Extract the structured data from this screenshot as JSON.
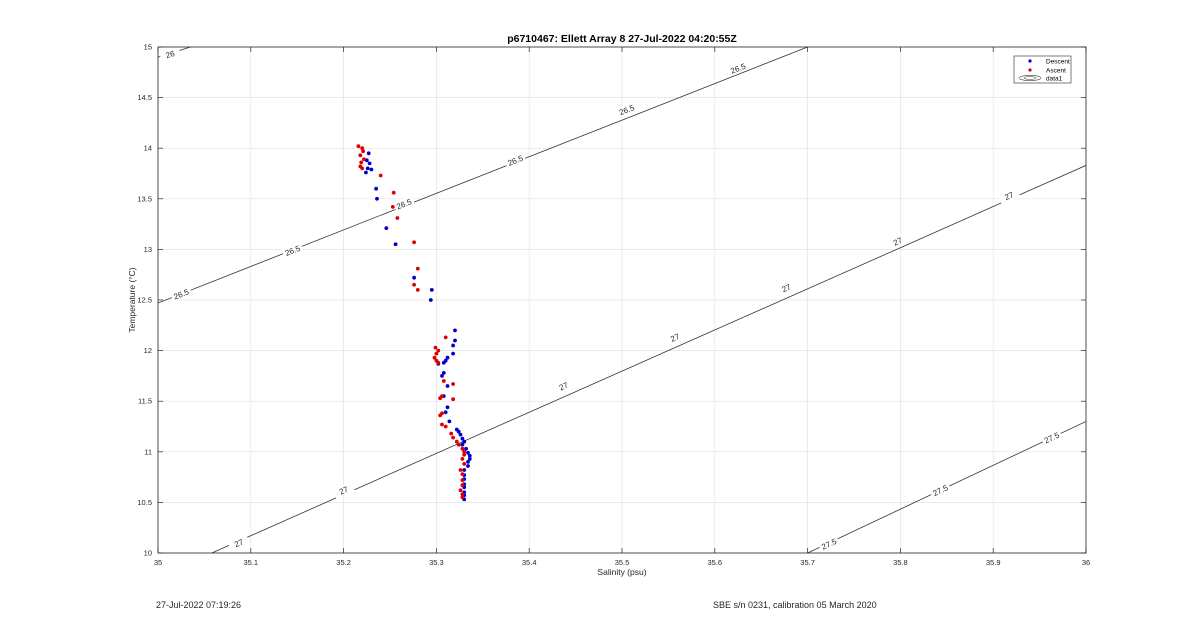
{
  "chart_data": {
    "type": "scatter",
    "title": "p6710467: Ellett Array 8 27-Jul-2022 04:20:55Z",
    "xlabel": "Salinity (psu)",
    "ylabel": "Temperature (°C)",
    "xlim": [
      35,
      36
    ],
    "ylim": [
      10,
      15
    ],
    "x_ticks": [
      "35",
      "35.1",
      "35.2",
      "35.3",
      "35.4",
      "35.5",
      "35.6",
      "35.7",
      "35.8",
      "35.9",
      "36"
    ],
    "y_ticks": [
      "10",
      "10.5",
      "11",
      "11.5",
      "12",
      "12.5",
      "13",
      "13.5",
      "14",
      "14.5",
      "15"
    ],
    "grid": true,
    "legend_position": "top-right",
    "legend": [
      {
        "label": "Descent",
        "color": "#0000cc"
      },
      {
        "label": "Ascent",
        "color": "#dd0000"
      },
      {
        "label": "data1",
        "color": "#000000"
      }
    ],
    "contours": [
      {
        "label": "26",
        "points": [
          [
            35.0,
            14.9
          ],
          [
            35.035,
            15.0
          ]
        ],
        "label_positions": [
          [
            35.013,
            14.93
          ]
        ]
      },
      {
        "label": "26.5",
        "points": [
          [
            35.0,
            12.47
          ],
          [
            35.7,
            15.0
          ]
        ],
        "label_positions": [
          [
            35.025,
            12.56
          ],
          [
            35.145,
            12.99
          ],
          [
            35.265,
            13.45
          ],
          [
            35.385,
            13.88
          ],
          [
            35.505,
            14.38
          ],
          [
            35.625,
            14.79
          ]
        ]
      },
      {
        "label": "27",
        "points": [
          [
            35.058,
            10.0
          ],
          [
            36.0,
            13.83
          ]
        ],
        "label_positions": [
          [
            35.087,
            10.1
          ],
          [
            35.2,
            10.62
          ],
          [
            35.437,
            11.65
          ],
          [
            35.557,
            12.13
          ],
          [
            35.677,
            12.62
          ],
          [
            35.797,
            13.08
          ],
          [
            35.917,
            13.53
          ]
        ]
      },
      {
        "label": "27.5",
        "points": [
          [
            35.7,
            10.0
          ],
          [
            36.0,
            11.3
          ]
        ],
        "label_positions": [
          [
            35.723,
            10.09
          ],
          [
            35.843,
            10.62
          ],
          [
            35.963,
            11.14
          ]
        ]
      }
    ],
    "series": [
      {
        "name": "Descent",
        "color": "#0000cc",
        "points": [
          [
            35.227,
            13.95
          ],
          [
            35.225,
            13.88
          ],
          [
            35.228,
            13.85
          ],
          [
            35.226,
            13.8
          ],
          [
            35.23,
            13.79
          ],
          [
            35.224,
            13.76
          ],
          [
            35.235,
            13.6
          ],
          [
            35.236,
            13.5
          ],
          [
            35.246,
            13.21
          ],
          [
            35.256,
            13.05
          ],
          [
            35.276,
            12.72
          ],
          [
            35.295,
            12.6
          ],
          [
            35.294,
            12.5
          ],
          [
            35.32,
            12.2
          ],
          [
            35.32,
            12.1
          ],
          [
            35.318,
            12.05
          ],
          [
            35.318,
            11.97
          ],
          [
            35.312,
            11.93
          ],
          [
            35.31,
            11.9
          ],
          [
            35.308,
            11.88
          ],
          [
            35.302,
            11.87
          ],
          [
            35.308,
            11.78
          ],
          [
            35.306,
            11.75
          ],
          [
            35.312,
            11.65
          ],
          [
            35.308,
            11.55
          ],
          [
            35.312,
            11.44
          ],
          [
            35.31,
            11.39
          ],
          [
            35.314,
            11.3
          ],
          [
            35.322,
            11.22
          ],
          [
            35.324,
            11.2
          ],
          [
            35.326,
            11.17
          ],
          [
            35.328,
            11.13
          ],
          [
            35.33,
            11.1
          ],
          [
            35.328,
            11.07
          ],
          [
            35.332,
            11.03
          ],
          [
            35.334,
            10.99
          ],
          [
            35.336,
            10.96
          ],
          [
            35.336,
            10.93
          ],
          [
            35.334,
            10.9
          ],
          [
            35.334,
            10.86
          ],
          [
            35.33,
            10.82
          ],
          [
            35.33,
            10.77
          ],
          [
            35.33,
            10.73
          ],
          [
            35.33,
            10.68
          ],
          [
            35.33,
            10.65
          ],
          [
            35.33,
            10.6
          ],
          [
            35.33,
            10.57
          ],
          [
            35.33,
            10.53
          ]
        ]
      },
      {
        "name": "Ascent",
        "color": "#dd0000",
        "points": [
          [
            35.216,
            14.02
          ],
          [
            35.22,
            14.0
          ],
          [
            35.221,
            13.97
          ],
          [
            35.218,
            13.93
          ],
          [
            35.222,
            13.89
          ],
          [
            35.219,
            13.86
          ],
          [
            35.218,
            13.82
          ],
          [
            35.22,
            13.8
          ],
          [
            35.24,
            13.73
          ],
          [
            35.254,
            13.56
          ],
          [
            35.253,
            13.42
          ],
          [
            35.258,
            13.31
          ],
          [
            35.276,
            13.07
          ],
          [
            35.28,
            12.81
          ],
          [
            35.276,
            12.65
          ],
          [
            35.28,
            12.6
          ],
          [
            35.299,
            12.03
          ],
          [
            35.302,
            12.0
          ],
          [
            35.3,
            11.97
          ],
          [
            35.298,
            11.93
          ],
          [
            35.3,
            11.9
          ],
          [
            35.302,
            11.88
          ],
          [
            35.31,
            12.13
          ],
          [
            35.308,
            11.7
          ],
          [
            35.318,
            11.67
          ],
          [
            35.306,
            11.55
          ],
          [
            35.304,
            11.53
          ],
          [
            35.318,
            11.52
          ],
          [
            35.306,
            11.38
          ],
          [
            35.304,
            11.36
          ],
          [
            35.306,
            11.27
          ],
          [
            35.31,
            11.25
          ],
          [
            35.316,
            11.18
          ],
          [
            35.318,
            11.14
          ],
          [
            35.322,
            11.1
          ],
          [
            35.324,
            11.07
          ],
          [
            35.328,
            11.03
          ],
          [
            35.33,
            11.0
          ],
          [
            35.33,
            10.97
          ],
          [
            35.328,
            10.93
          ],
          [
            35.33,
            10.88
          ],
          [
            35.326,
            10.82
          ],
          [
            35.328,
            10.78
          ],
          [
            35.328,
            10.72
          ],
          [
            35.328,
            10.67
          ],
          [
            35.326,
            10.62
          ],
          [
            35.328,
            10.58
          ],
          [
            35.328,
            10.55
          ]
        ]
      }
    ]
  },
  "footer": {
    "timestamp": "27-Jul-2022 07:19:26",
    "calibration": "SBE s/n 0231, calibration 05 March 2020"
  }
}
